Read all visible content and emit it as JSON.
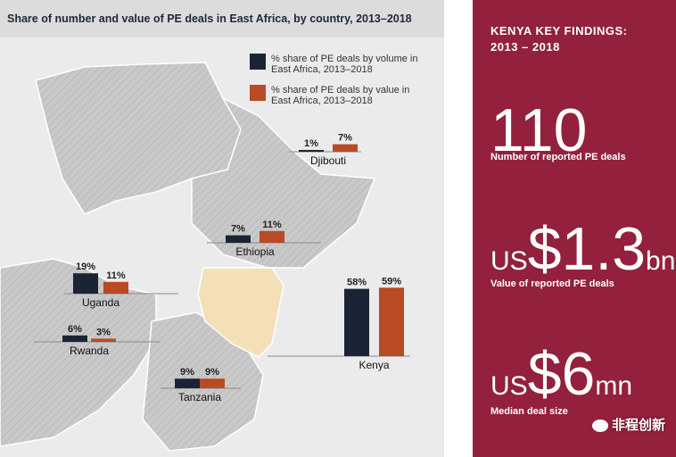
{
  "chart_data": {
    "type": "bar",
    "title": "Share of number and value of PE deals in East Africa, by country, 2013–2018",
    "categories": [
      "Djibouti",
      "Ethiopia",
      "Uganda",
      "Rwanda",
      "Kenya",
      "Tanzania"
    ],
    "series": [
      {
        "name": "% share of PE deals by volume in East Africa, 2013–2018",
        "values": [
          1,
          7,
          19,
          6,
          58,
          9
        ],
        "labels": [
          "1%",
          "7%",
          "19%",
          "6%",
          "58%",
          "9%"
        ]
      },
      {
        "name": "% share of PE deals by value in East Africa, 2013–2018",
        "values": [
          7,
          11,
          11,
          3,
          59,
          9
        ],
        "labels": [
          "7%",
          "11%",
          "11%",
          "3%",
          "59%",
          "9%"
        ]
      }
    ],
    "highlight": "Kenya"
  },
  "legend": {
    "volume": "% share of PE deals by volume in East Africa, 2013–2018",
    "value": "% share of PE deals by value in East Africa, 2013–2018"
  },
  "key_findings": {
    "heading_line1": "KENYA KEY FINDINGS:",
    "heading_line2": "2013 – 2018",
    "deals_number": "110",
    "deals_label": "Number of reported PE deals",
    "value_prefix": "US",
    "value_number": "$1.3",
    "value_suffix": "bn",
    "value_label": "Value of reported PE deals",
    "size_prefix": "US",
    "size_number": "$6",
    "size_suffix": "mn",
    "size_label": "Median deal size"
  },
  "watermark": {
    "text": "非程创新"
  },
  "colors": {
    "volume": "#1b2434",
    "value": "#b94a26",
    "panel": "#93203d",
    "kenya": "#f3dfb8"
  }
}
